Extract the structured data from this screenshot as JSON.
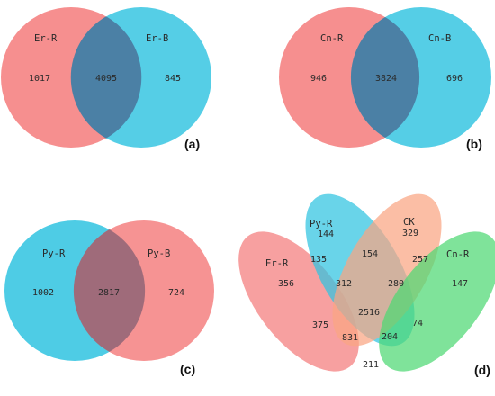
{
  "panels": {
    "a": {
      "tag": "(a)",
      "left": {
        "name": "Er-R",
        "color": "#f47b7b"
      },
      "right": {
        "name": "Er-B",
        "color": "#2fc3e0"
      },
      "counts": {
        "left_only": "1017",
        "both": "4095",
        "right_only": "845"
      }
    },
    "b": {
      "tag": "(b)",
      "left": {
        "name": "Cn-R",
        "color": "#f47b7b"
      },
      "right": {
        "name": "Cn-B",
        "color": "#2fc3e0"
      },
      "counts": {
        "left_only": "946",
        "both": "3824",
        "right_only": "696"
      }
    },
    "c": {
      "tag": "(c)",
      "left": {
        "name": "Py-R",
        "color": "#2fc3e0"
      },
      "right": {
        "name": "Py-B",
        "color": "#f47b7b"
      },
      "counts": {
        "left_only": "1002",
        "both": "2817",
        "right_only": "724"
      }
    },
    "d": {
      "tag": "(d)",
      "sets": [
        {
          "name": "Er-R",
          "color": "#f47b7b"
        },
        {
          "name": "Py-R",
          "color": "#2fc3e0"
        },
        {
          "name": "CK",
          "color": "#f9a582"
        },
        {
          "name": "Cn-R",
          "color": "#4ed873"
        }
      ],
      "counts": {
        "er_only": "356",
        "py_only": "144",
        "ck_only": "329",
        "cn_only": "147",
        "er_py": "135",
        "py_ck": "154",
        "ck_cn": "257",
        "er_py_ck": "312",
        "py_ck_cn": "280",
        "all": "2516",
        "er_ck": "375",
        "er_py_cn": "831",
        "er_ck_cn": "204",
        "py_cn": "74",
        "er_cn": "211"
      }
    }
  }
}
